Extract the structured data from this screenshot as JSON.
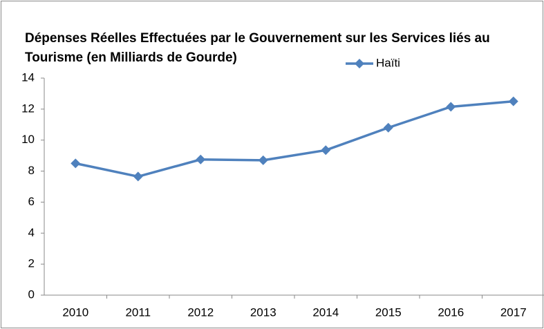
{
  "chart_data": {
    "type": "line",
    "title": "Dépenses Réelles Effectuées par le Gouvernement sur les Services liés au Tourisme (en Milliards de Gourde)",
    "categories": [
      "2010",
      "2011",
      "2012",
      "2013",
      "2014",
      "2015",
      "2016",
      "2017"
    ],
    "series": [
      {
        "name": "Haïti",
        "color": "#4f81bd",
        "values": [
          8.5,
          7.65,
          8.75,
          8.7,
          9.35,
          10.8,
          12.15,
          12.5
        ]
      }
    ],
    "ylim": [
      0,
      14
    ],
    "yticks": [
      0,
      2,
      4,
      6,
      8,
      10,
      12,
      14
    ],
    "grid": false,
    "legend": "top"
  }
}
